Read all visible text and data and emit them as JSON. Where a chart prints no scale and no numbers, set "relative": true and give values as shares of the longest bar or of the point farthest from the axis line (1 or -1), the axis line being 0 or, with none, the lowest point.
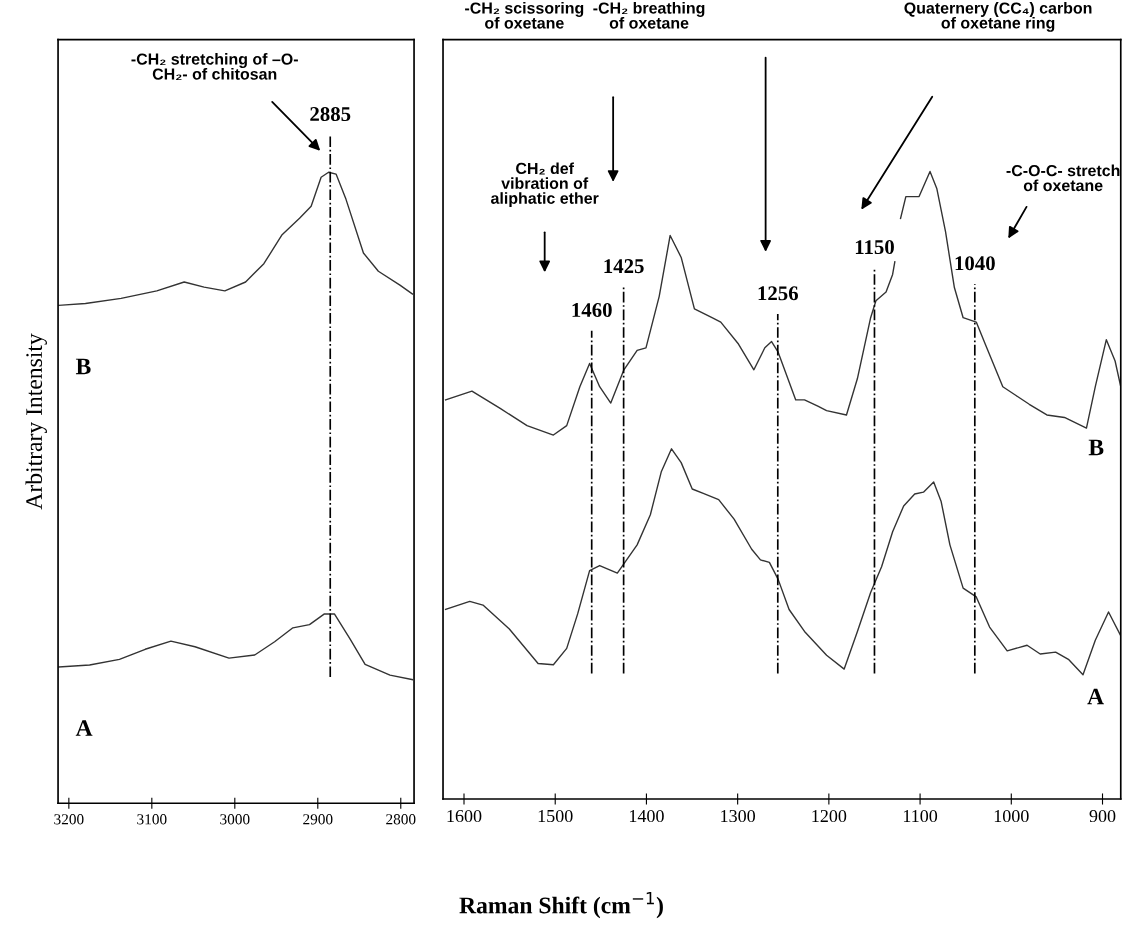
{
  "chart_data": [
    {
      "type": "line",
      "relative": true,
      "ylabel": "Arbitrary Intensity",
      "xlim": [
        3213,
        2784
      ],
      "xticks": [
        3200,
        3100,
        3000,
        2900,
        2800
      ],
      "tick_labels": "x",
      "grid": false,
      "legend": false,
      "marker": "none",
      "line_style": "solid",
      "annotations": [
        "-CH₂ stretching of –O-\nCH₂- of chitosan"
      ],
      "ref_lines": [
        {
          "axis": "x",
          "value": 2885,
          "label": "2885",
          "color": "#000000",
          "line_style": "dashdot"
        }
      ],
      "series": [
        {
          "name": "B",
          "color": "#333333",
          "x": [
            3212,
            3180,
            3137,
            3094,
            3061,
            3037,
            3012,
            2987,
            2965,
            2943,
            2922,
            2908,
            2896,
            2887,
            2878,
            2866,
            2845,
            2827,
            2801,
            2786
          ],
          "values": [
            0.789,
            0.792,
            0.8,
            0.812,
            0.826,
            0.818,
            0.812,
            0.826,
            0.855,
            0.901,
            0.927,
            0.946,
            0.992,
            1.0,
            0.997,
            0.957,
            0.872,
            0.843,
            0.821,
            0.807
          ]
        },
        {
          "name": "A",
          "color": "#333333",
          "x": [
            3212,
            3175,
            3139,
            3108,
            3077,
            3048,
            3007,
            2976,
            2952,
            2930,
            2910,
            2892,
            2880,
            2861,
            2843,
            2813,
            2786
          ],
          "values": [
            0.216,
            0.219,
            0.228,
            0.244,
            0.257,
            0.248,
            0.23,
            0.235,
            0.256,
            0.278,
            0.283,
            0.3,
            0.3,
            0.26,
            0.22,
            0.203,
            0.196
          ]
        }
      ]
    },
    {
      "type": "line",
      "relative": true,
      "xlabel": "Raman Shift (cm$^{−1}$)",
      "xlim": [
        1623,
        880
      ],
      "xticks": [
        1600,
        1500,
        1400,
        1300,
        1200,
        1100,
        1000,
        900
      ],
      "tick_labels": "x",
      "grid": false,
      "legend": false,
      "marker": "none",
      "line_style": "solid",
      "annotations": [
        "CH₂ def\nvibration of\naliphatic ether",
        "-CH₂ scissoring\nof oxetane",
        "-CH₂ breathing\nof oxetane",
        "Quaternery (CC₄) carbon\nof oxetane ring",
        "-C-O-C- stretch\nof oxetane"
      ],
      "ref_lines": [
        {
          "axis": "x",
          "value": 1460,
          "label": "1460",
          "color": "#000000",
          "line_style": "dashdot"
        },
        {
          "axis": "x",
          "value": 1425,
          "label": "1425",
          "color": "#000000",
          "line_style": "dashdot"
        },
        {
          "axis": "x",
          "value": 1256,
          "label": "1256",
          "color": "#000000",
          "line_style": "dashdot"
        },
        {
          "axis": "x",
          "value": 1150,
          "label": "1150",
          "color": "#000000",
          "line_style": "dashdot"
        },
        {
          "axis": "x",
          "value": 1040,
          "label": "1040",
          "color": "#000000",
          "line_style": "dashdot"
        }
      ],
      "series": [
        {
          "name": "B",
          "color": "#333333",
          "x": [
            1620.2,
            1591.3,
            1559.9,
            1530.9,
            1502.0,
            1487.4,
            1473.0,
            1462.3,
            1451.3,
            1439.1,
            1424.7,
            1410.2,
            1400.5,
            1386.0,
            1374.0,
            1361.9,
            1347.4,
            1328.1,
            1318.5,
            1299.1,
            1282.2,
            1270.2,
            1262.8,
            1255.6,
            1236.3,
            1226.7,
            1212.1,
            1202.5,
            1180.7,
            1168.7,
            1154.2,
            1148.4,
            1137.3,
            1130.1,
            1127.7,
            1124.5,
            1121.4,
            1115.6,
            1108.3,
            1101.1,
            1089.1,
            1081.7,
            1072.1,
            1062.4,
            1052.8,
            1038.4,
            1028.6,
            1009.3,
            994.8,
            980.3,
            961.0,
            941.7,
            917.6,
            907.9,
            895.8,
            886.2,
            880
          ],
          "values": [
            0.636,
            0.65,
            0.622,
            0.595,
            0.58,
            0.595,
            0.657,
            0.694,
            0.657,
            0.631,
            0.684,
            0.715,
            0.719,
            0.801,
            0.898,
            0.863,
            0.781,
            0.767,
            0.76,
            0.725,
            0.684,
            0.719,
            0.729,
            0.712,
            0.636,
            0.636,
            0.626,
            0.619,
            0.612,
            0.67,
            0.767,
            0.794,
            0.808,
            0.836,
            0.856,
            null,
            0.925,
            0.96,
            0.96,
            0.96,
            1.0,
            0.973,
            0.904,
            0.815,
            0.767,
            0.76,
            0.725,
            0.657,
            0.643,
            0.629,
            0.612,
            0.608,
            0.591,
            0.657,
            0.732,
            0.698,
            0.657
          ]
        },
        {
          "name": "A",
          "color": "#333333",
          "x": [
            1620.2,
            1593.7,
            1579.2,
            1550.3,
            1518.8,
            1502.0,
            1487.4,
            1475.4,
            1462.3,
            1451.3,
            1431.9,
            1410.2,
            1395.7,
            1383.6,
            1372.5,
            1361.9,
            1349.8,
            1337.7,
            1320.8,
            1303.9,
            1284.6,
            1275.0,
            1265.2,
            1255.6,
            1243.6,
            1226.7,
            1202.5,
            1183.2,
            1168.7,
            1154.2,
            1142.2,
            1130.1,
            1118.0,
            1105.9,
            1096.3,
            1085.1,
            1076.9,
            1067.3,
            1052.8,
            1038.4,
            1023.8,
            1004.5,
            982.7,
            968.3,
            951.4,
            936.9,
            921.4,
            907.9,
            893.4,
            880
          ],
          "values": [
            0.302,
            0.315,
            0.309,
            0.271,
            0.216,
            0.214,
            0.24,
            0.295,
            0.364,
            0.372,
            0.36,
            0.405,
            0.453,
            0.522,
            0.558,
            0.536,
            0.494,
            0.487,
            0.477,
            0.446,
            0.398,
            0.381,
            0.377,
            0.35,
            0.302,
            0.267,
            0.229,
            0.207,
            0.267,
            0.329,
            0.37,
            0.426,
            0.467,
            0.486,
            0.489,
            0.505,
            0.474,
            0.405,
            0.336,
            0.322,
            0.274,
            0.236,
            0.245,
            0.231,
            0.234,
            0.222,
            0.198,
            0.253,
            0.298,
            0.26
          ]
        }
      ]
    }
  ]
}
